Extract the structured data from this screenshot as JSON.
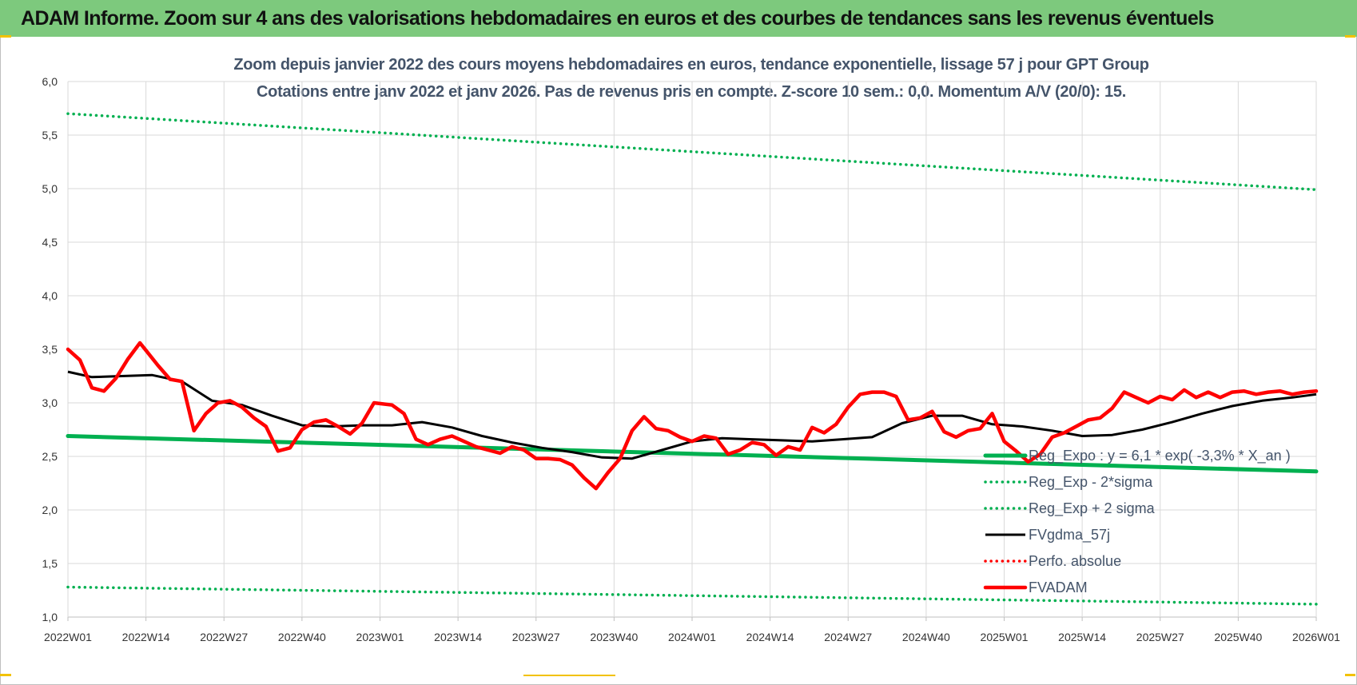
{
  "page": {
    "banner_title": "ADAM Informe. Zoom sur 4 ans des valorisations hebdomadaires en euros et des courbes de tendances sans les revenus éventuels"
  },
  "chart_data": {
    "type": "line",
    "title": "Zoom depuis janvier 2022 des cours moyens hebdomadaires en euros, tendance exponentielle, lissage 57 j pour GPT Group",
    "subtitle": "Cotations entre janv 2022 et janv 2026. Pas de revenus pris en compte. Z-score 10 sem.: 0,0. Momentum A/V (20/0): 15.",
    "x_tick_labels": [
      "2022W01",
      "2022W14",
      "2022W27",
      "2022W40",
      "2023W01",
      "2023W14",
      "2023W27",
      "2023W40",
      "2024W01",
      "2024W14",
      "2024W27",
      "2024W40",
      "2025W01",
      "2025W14",
      "2025W27",
      "2025W40",
      "2026W01"
    ],
    "y_tick_labels": [
      "1,0",
      "1,5",
      "2,0",
      "2,5",
      "3,0",
      "3,5",
      "4,0",
      "4,5",
      "5,0",
      "5,5",
      "6,0"
    ],
    "ylim": [
      1.0,
      6.0
    ],
    "grid": true,
    "legend_position": "bottom-right",
    "series": [
      {
        "name": "Reg_Expo : y = 6,1 * exp( -3,3% *  X_an )",
        "style": "solid-thick",
        "color": "#00b050",
        "x": [
          "2022W01",
          "2026W01"
        ],
        "y": [
          2.69,
          2.36
        ]
      },
      {
        "name": "Reg_Exp - 2*sigma",
        "style": "dotted",
        "color": "#00b050",
        "x": [
          "2022W01",
          "2026W01"
        ],
        "y": [
          1.28,
          1.12
        ]
      },
      {
        "name": "Reg_Exp + 2 sigma",
        "style": "dotted",
        "color": "#00b050",
        "x": [
          "2022W01",
          "2026W01"
        ],
        "y": [
          5.7,
          4.99
        ]
      },
      {
        "name": "FVgdma_57j",
        "style": "solid",
        "color": "#000000",
        "x": [
          "2022W01",
          "2022W05",
          "2022W10",
          "2022W15",
          "2022W20",
          "2022W25",
          "2022W30",
          "2022W35",
          "2022W40",
          "2022W45",
          "2022W50",
          "2023W03",
          "2023W08",
          "2023W13",
          "2023W18",
          "2023W23",
          "2023W28",
          "2023W33",
          "2023W38",
          "2023W43",
          "2023W48",
          "2024W01",
          "2024W06",
          "2024W11",
          "2024W16",
          "2024W21",
          "2024W26",
          "2024W31",
          "2024W36",
          "2024W41",
          "2024W46",
          "2024W51",
          "2025W04",
          "2025W09",
          "2025W14",
          "2025W19",
          "2025W24",
          "2025W29",
          "2025W34",
          "2025W39",
          "2025W44",
          "2025W49",
          "2026W01"
        ],
        "y": [
          3.29,
          3.24,
          3.25,
          3.26,
          3.2,
          3.02,
          2.98,
          2.88,
          2.79,
          2.78,
          2.79,
          2.79,
          2.82,
          2.77,
          2.69,
          2.63,
          2.58,
          2.54,
          2.49,
          2.48,
          2.56,
          2.64,
          2.67,
          2.66,
          2.65,
          2.64,
          2.66,
          2.68,
          2.81,
          2.88,
          2.88,
          2.8,
          2.78,
          2.74,
          2.69,
          2.7,
          2.75,
          2.82,
          2.9,
          2.97,
          3.02,
          3.05,
          3.08
        ]
      },
      {
        "name": "Perfo. absolue",
        "style": "dotted",
        "color": "#ff0000",
        "x": [],
        "y": []
      },
      {
        "name": "FVADAM",
        "style": "solid-thick",
        "color": "#ff0000",
        "x": [
          "2022W01",
          "2022W03",
          "2022W05",
          "2022W07",
          "2022W09",
          "2022W11",
          "2022W13",
          "2022W14",
          "2022W16",
          "2022W18",
          "2022W20",
          "2022W22",
          "2022W24",
          "2022W26",
          "2022W28",
          "2022W30",
          "2022W32",
          "2022W34",
          "2022W36",
          "2022W38",
          "2022W40",
          "2022W42",
          "2022W44",
          "2022W46",
          "2022W48",
          "2022W50",
          "2022W52",
          "2023W03",
          "2023W05",
          "2023W07",
          "2023W09",
          "2023W11",
          "2023W13",
          "2023W15",
          "2023W17",
          "2023W19",
          "2023W21",
          "2023W23",
          "2023W25",
          "2023W27",
          "2023W29",
          "2023W31",
          "2023W33",
          "2023W35",
          "2023W37",
          "2023W39",
          "2023W41",
          "2023W43",
          "2023W45",
          "2023W47",
          "2023W49",
          "2023W51",
          "2024W01",
          "2024W03",
          "2024W05",
          "2024W07",
          "2024W09",
          "2024W11",
          "2024W13",
          "2024W15",
          "2024W17",
          "2024W19",
          "2024W21",
          "2024W23",
          "2024W25",
          "2024W27",
          "2024W29",
          "2024W31",
          "2024W33",
          "2024W35",
          "2024W37",
          "2024W39",
          "2024W41",
          "2024W43",
          "2024W45",
          "2024W47",
          "2024W49",
          "2024W51",
          "2025W01",
          "2025W03",
          "2025W05",
          "2025W07",
          "2025W09",
          "2025W11",
          "2025W13",
          "2025W15",
          "2025W17",
          "2025W19",
          "2025W21",
          "2025W23",
          "2025W25",
          "2025W27",
          "2025W29",
          "2025W31",
          "2025W33",
          "2025W35",
          "2025W37",
          "2025W39",
          "2025W41",
          "2025W43",
          "2025W45",
          "2025W47",
          "2025W49",
          "2025W51",
          "2026W01"
        ],
        "y": [
          3.5,
          3.4,
          3.14,
          3.11,
          3.23,
          3.41,
          3.56,
          3.49,
          3.35,
          3.22,
          3.2,
          2.74,
          2.9,
          3.0,
          3.02,
          2.96,
          2.86,
          2.78,
          2.55,
          2.58,
          2.75,
          2.82,
          2.84,
          2.78,
          2.71,
          2.81,
          3.0,
          2.98,
          2.9,
          2.66,
          2.61,
          2.66,
          2.69,
          2.64,
          2.59,
          2.56,
          2.53,
          2.59,
          2.56,
          2.48,
          2.48,
          2.47,
          2.42,
          2.3,
          2.2,
          2.35,
          2.48,
          2.74,
          2.87,
          2.76,
          2.74,
          2.68,
          2.64,
          2.69,
          2.67,
          2.52,
          2.56,
          2.63,
          2.61,
          2.51,
          2.59,
          2.56,
          2.77,
          2.72,
          2.8,
          2.96,
          3.08,
          3.1,
          3.1,
          3.06,
          2.84,
          2.86,
          2.92,
          2.73,
          2.68,
          2.74,
          2.76,
          2.9,
          2.64,
          2.55,
          2.45,
          2.52,
          2.68,
          2.72,
          2.78,
          2.84,
          2.86,
          2.95,
          3.1,
          3.05,
          3.0,
          3.06,
          3.03,
          3.12,
          3.05,
          3.1,
          3.05,
          3.1,
          3.11,
          3.08,
          3.1,
          3.11,
          3.08,
          3.1,
          3.11
        ]
      }
    ]
  }
}
